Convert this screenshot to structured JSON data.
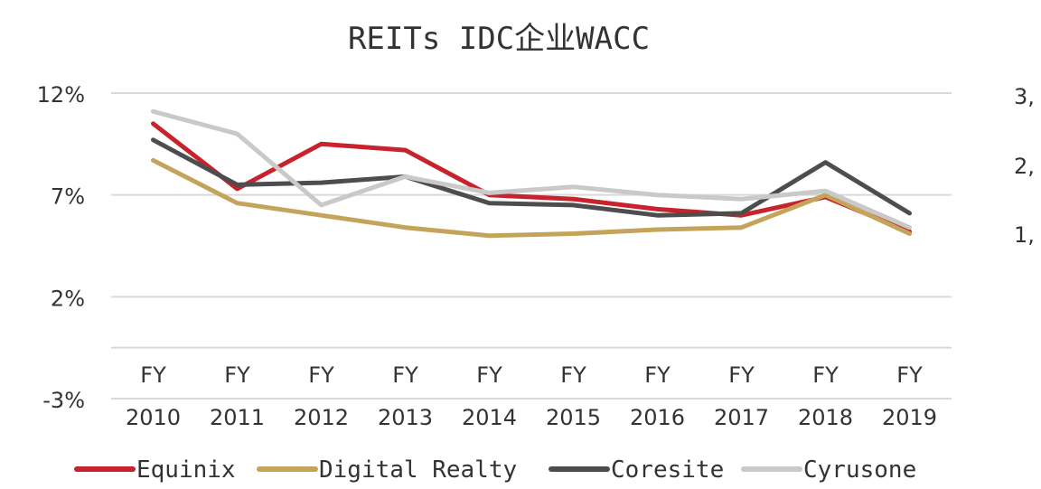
{
  "chart_data": {
    "type": "line",
    "title": "REITs IDC企业WACC",
    "categories": [
      [
        "FY",
        "2010"
      ],
      [
        "FY",
        "2011"
      ],
      [
        "FY",
        "2012"
      ],
      [
        "FY",
        "2013"
      ],
      [
        "FY",
        "2014"
      ],
      [
        "FY",
        "2015"
      ],
      [
        "FY",
        "2016"
      ],
      [
        "FY",
        "2017"
      ],
      [
        "FY",
        "2018"
      ],
      [
        "FY",
        "2019"
      ]
    ],
    "ylim": [
      -3,
      12
    ],
    "yticks": [
      12,
      7,
      2,
      -3
    ],
    "ytick_labels": [
      "12%",
      "7%",
      "2%",
      "-3%"
    ],
    "y2_tick_labels": [
      "3,",
      "2,",
      "1,"
    ],
    "grid": true,
    "legend": "bottom",
    "series": [
      {
        "name": "Equinix",
        "color": "#c8232c",
        "values": [
          10.5,
          7.3,
          9.5,
          9.2,
          7.0,
          6.8,
          6.3,
          6.0,
          6.9,
          5.2
        ]
      },
      {
        "name": "Digital Realty",
        "color": "#c4a45a",
        "values": [
          8.7,
          6.6,
          6.0,
          5.4,
          5.0,
          5.1,
          5.3,
          5.4,
          7.0,
          5.1
        ]
      },
      {
        "name": "Coresite",
        "color": "#4d4d4d",
        "values": [
          9.7,
          7.5,
          7.6,
          7.9,
          6.6,
          6.5,
          6.0,
          6.1,
          8.6,
          6.1
        ]
      },
      {
        "name": "Cyrusone",
        "color": "#c9c9c9",
        "values": [
          11.1,
          10.0,
          6.5,
          7.9,
          7.1,
          7.4,
          7.0,
          6.8,
          7.2,
          5.4
        ]
      }
    ]
  }
}
